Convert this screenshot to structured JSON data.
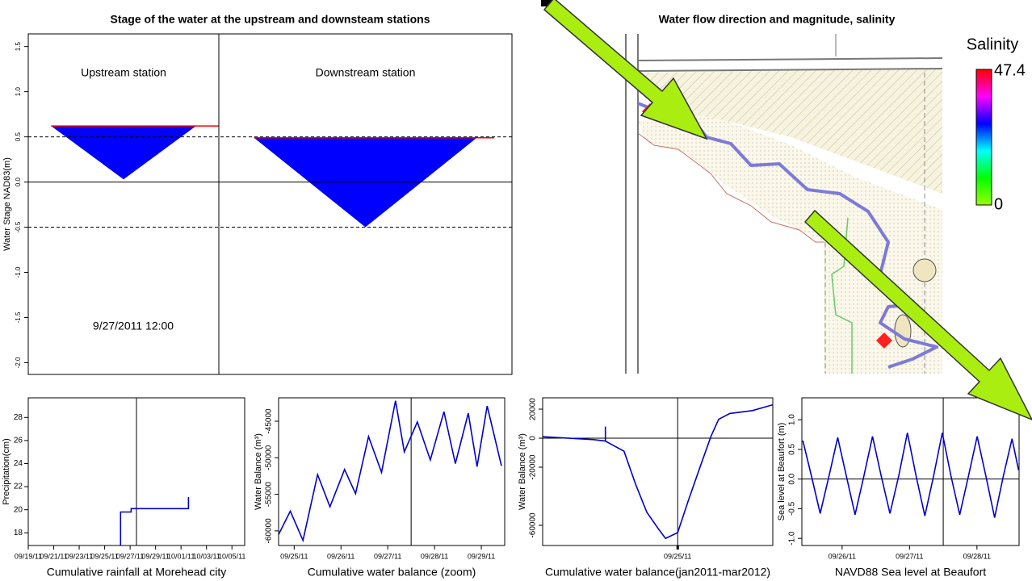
{
  "chart_data": [
    {
      "type": "stage",
      "title": "Stage of the water at the upstream and downsteam stations",
      "y_label": "Water Stage NAD83(m)",
      "categories": [
        "Upstream station",
        "Downstream station"
      ],
      "values": [
        0.62,
        0.49
      ],
      "lows": [
        0.03,
        -0.5
      ],
      "color": "#0000ff",
      "line_color": "#ff0000",
      "annotation": "9/27/2011 12:00",
      "ylim": [
        -2.13,
        1.64
      ],
      "yticks": [
        {
          "value": -2,
          "label": "-2.0"
        },
        -1.5,
        {
          "value": -1,
          "label": "-1.0"
        },
        -0.5,
        {
          "value": 0,
          "label": "0.0"
        },
        0.5,
        {
          "value": 1,
          "label": "1.0"
        },
        1.5
      ],
      "hlines": [
        {
          "value": 0.5,
          "style": "dashed"
        },
        {
          "value": 0,
          "style": "solid"
        },
        {
          "value": -0.5,
          "style": "dashed"
        }
      ]
    },
    {
      "type": "map",
      "title": "Water flow direction and magnitude, salinity",
      "colorbar": {
        "title": "Salinity",
        "max": 47.4,
        "min": 0,
        "colors": [
          "#ff0000",
          "#ff00ff",
          "#0000ff",
          "#00ffff",
          "#00ff00",
          "#99ff00"
        ]
      }
    },
    {
      "type": "line",
      "x_label": "Cumulative rainfall at Morehead city",
      "y_label": "Precipitation(cm)",
      "x": [
        "09/26/11 06:00",
        "09/26/11 06:00",
        "09/27/11 02:00",
        "09/27/11 02:00",
        "10/01/11 14:00",
        "10/01/11 14:00"
      ],
      "values": [
        16.9,
        19.8,
        19.8,
        20.1,
        20.1,
        21.1
      ],
      "color": "#0000cc",
      "xlim": [
        "09/19/11",
        "10/06/11"
      ],
      "xticks": [
        "09/19/11",
        "09/21/11",
        "09/23/11",
        "09/25/11",
        "09/27/11",
        "09/29/11",
        "10/01/11",
        "10/03/11",
        "10/05/11"
      ],
      "ylim": [
        16.9,
        29.7
      ],
      "yticks": [
        18,
        20,
        22,
        24,
        26,
        28
      ],
      "current_time": "09/27/11 12:00"
    },
    {
      "type": "line",
      "x_label": "Cumulative water balance (zoom)",
      "y_label": "Water Balance (m³)",
      "x": [
        "09/24/11 16:00",
        "09/24/11 22:00",
        "09/25/11 04:30",
        "09/25/11 12:00",
        "09/25/11 18:20",
        "09/26/11 01:50",
        "09/26/11 07:30",
        "09/26/11 14:10",
        "09/26/11 20:50",
        "09/27/11 04:00",
        "09/27/11 08:30",
        "09/27/11 15:10",
        "09/27/11 21:50",
        "09/28/11 04:50",
        "09/28/11 10:40",
        "09/28/11 17:20",
        "09/28/11 21:50",
        "09/29/11 03:00",
        "09/29/11 10:20"
      ],
      "values": [
        -60500,
        -57300,
        -61300,
        -52300,
        -56700,
        -51600,
        -54900,
        -47100,
        -52000,
        -42200,
        -49200,
        -45100,
        -50300,
        -43700,
        -50800,
        -43900,
        -51200,
        -42900,
        -51100
      ],
      "color": "#0000cc",
      "xlim": [
        "09/24/11 16:00",
        "09/29/11 12:00"
      ],
      "xticks": [
        "09/25/11",
        "09/26/11",
        "09/27/11",
        "09/28/11",
        "09/29/11"
      ],
      "ylim": [
        -62000,
        -41800
      ],
      "yticks": [
        -60000,
        -55000,
        -50000,
        -45000
      ],
      "current_time": "09/27/11 12:00"
    },
    {
      "type": "line",
      "x_label": "Cumulative water balance(jan2011-mar2012)",
      "y_label": "Water Balance (m³)",
      "x": [
        "01/01/11",
        "04/12/11",
        "05/05/11",
        "05/05/11",
        "05/05/11",
        "06/11/11",
        "07/04/11",
        "07/26/11",
        "08/17/11",
        "09/01/11",
        "09/25/11",
        "10/16/11",
        "11/07/11",
        "11/30/11",
        "12/15/11",
        "01/06/12",
        "02/20/12",
        "03/31/12"
      ],
      "values": [
        1000,
        -1000,
        -2000,
        8000,
        -2000,
        -9000,
        -32000,
        -51000,
        -62000,
        -69000,
        -65000,
        -43000,
        -21000,
        1500,
        13000,
        17000,
        19000,
        23000
      ],
      "color": "#0000cc",
      "xlim": [
        "01/01/11",
        "03/31/12"
      ],
      "xticks": [
        "09/25/11"
      ],
      "ylim": [
        -73900,
        27800
      ],
      "yticks": [
        20000,
        0,
        -20000,
        -60000
      ],
      "hline": 0,
      "current_time": "09/25/11"
    },
    {
      "type": "line",
      "x_label": "NAVD88 Sea level at Beaufort",
      "y_label": "Sea level at Beaufort (m)",
      "x": [
        "09/25/11 10:00",
        "09/25/11 13:06",
        "09/25/11 16:12",
        "09/25/11 19:19",
        "09/25/11 22:25",
        "09/26/11 01:31",
        "09/26/11 04:37",
        "09/26/11 07:44",
        "09/26/11 10:50",
        "09/26/11 13:56",
        "09/26/11 17:02",
        "09/26/11 20:09",
        "09/26/11 23:15",
        "09/27/11 02:21",
        "09/27/11 05:27",
        "09/27/11 08:34",
        "09/27/11 11:40",
        "09/27/11 14:46",
        "09/27/11 17:52",
        "09/27/11 20:59",
        "09/28/11 00:05",
        "09/28/11 03:11",
        "09/28/11 06:17",
        "09/28/11 09:24",
        "09/28/11 12:30",
        "09/28/11 14:50"
      ],
      "values": [
        0.65,
        0.05,
        -0.58,
        0.05,
        0.7,
        0.05,
        -0.6,
        0.05,
        0.72,
        0.05,
        -0.58,
        0.05,
        0.78,
        0.05,
        -0.62,
        0.05,
        0.78,
        0.05,
        -0.6,
        0.05,
        0.72,
        0.05,
        -0.65,
        0.05,
        0.68,
        0.15
      ],
      "color": "#0000cc",
      "xlim": [
        "09/25/11 09:40",
        "09/28/11 15:00"
      ],
      "xticks": [
        "09/26/11",
        "09/27/11",
        "09/28/11"
      ],
      "ylim": [
        -1.12,
        1.37
      ],
      "yticks": [
        {
          "value": -1,
          "label": "-1.0"
        },
        -0.5,
        {
          "value": 0,
          "label": "0.0"
        },
        0.5,
        {
          "value": 1,
          "label": "1.0"
        }
      ],
      "hline": 0,
      "current_time": "09/27/11 12:00"
    }
  ]
}
